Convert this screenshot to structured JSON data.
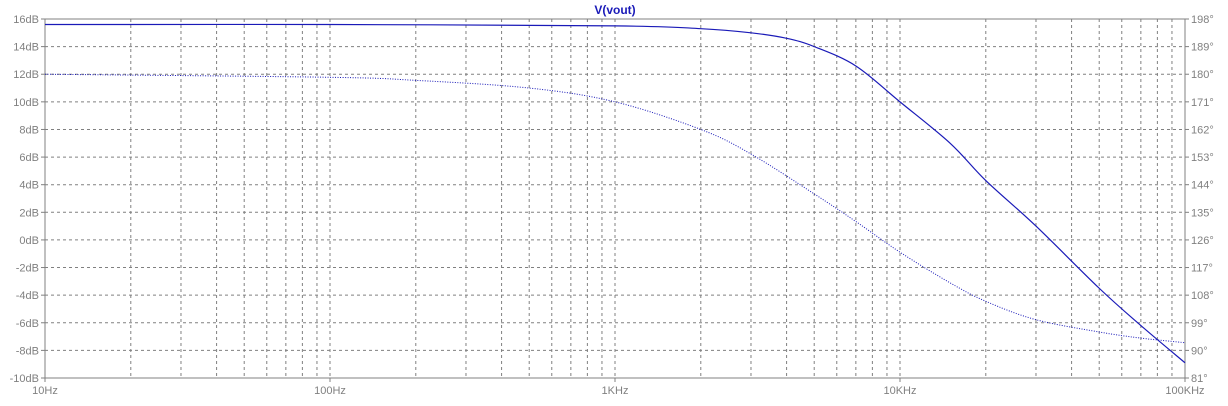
{
  "chart_data": {
    "type": "line",
    "title": "V(vout)",
    "x_scale": "log",
    "xlim": [
      10,
      100000
    ],
    "x_ticks": [
      10,
      100,
      1000,
      10000,
      100000
    ],
    "x_tick_labels": [
      "10Hz",
      "100Hz",
      "1KHz",
      "10KHz",
      "100KHz"
    ],
    "ylim_left": [
      -10,
      16
    ],
    "y_left_ticks": [
      16,
      14,
      12,
      10,
      8,
      6,
      4,
      2,
      0,
      -2,
      -4,
      -6,
      -8,
      -10
    ],
    "y_left_tick_labels": [
      "16dB",
      "14dB",
      "12dB",
      "10dB",
      "8dB",
      "6dB",
      "4dB",
      "2dB",
      "0dB",
      "-2dB",
      "-4dB",
      "-6dB",
      "-8dB",
      "-10dB"
    ],
    "ylim_right": [
      81,
      198
    ],
    "y_right_ticks": [
      198,
      189,
      180,
      171,
      162,
      153,
      144,
      135,
      126,
      117,
      108,
      99,
      90,
      81
    ],
    "y_right_tick_labels": [
      "198°",
      "189°",
      "180°",
      "171°",
      "162°",
      "153°",
      "144°",
      "135°",
      "126°",
      "117°",
      "108°",
      "99°",
      "90°",
      "81°"
    ],
    "grid": true,
    "color": "#1a1ab8",
    "series": [
      {
        "axis": "left",
        "style": "solid",
        "x": [
          10,
          100,
          1000,
          2000,
          3000,
          4000,
          5000,
          7000,
          10000,
          15000,
          20000,
          30000,
          50000,
          70000,
          100000
        ],
        "y": [
          15.6,
          15.6,
          15.5,
          15.3,
          15.0,
          14.6,
          14.0,
          12.6,
          10.0,
          7.0,
          4.3,
          1.0,
          -3.5,
          -6.2,
          -8.9
        ]
      },
      {
        "axis": "right",
        "style": "dotted",
        "x": [
          10,
          100,
          200,
          500,
          1000,
          2000,
          3000,
          5000,
          7000,
          10000,
          15000,
          20000,
          30000,
          50000,
          70000,
          100000
        ],
        "y": [
          180,
          179,
          178,
          175.5,
          171,
          162,
          154,
          141,
          132,
          122,
          112,
          106,
          100,
          96,
          94,
          92.5
        ]
      }
    ]
  }
}
